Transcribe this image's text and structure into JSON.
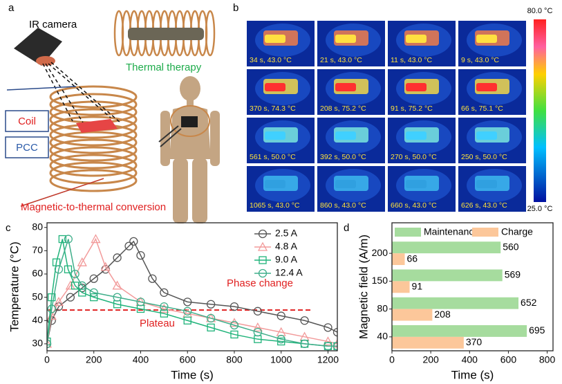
{
  "panel_a": {
    "label": "a",
    "camera": "IR camera",
    "therapy": "Thermal therapy",
    "coil": "Coil",
    "pcc": "PCC",
    "conversion": "Magnetic-to-thermal conversion"
  },
  "panel_b": {
    "label": "b",
    "images": [
      "34 s, 43.0 °C",
      "21 s, 43.0 °C",
      "11 s, 43.0 °C",
      "9 s, 43.0 °C",
      "370 s, 74.3 °C",
      "208 s, 75.2 °C",
      "91 s, 75.2 °C",
      "66 s, 75.1 °C",
      "561 s, 50.0 °C",
      "392 s, 50.0 °C",
      "270 s, 50.0 °C",
      "250 s, 50.0 °C",
      "1065 s, 43.0 °C",
      "860 s, 43.0 °C",
      "660 s, 43.0 °C",
      "626 s, 43.0 °C"
    ],
    "colorbar_max": "80.0 °C",
    "colorbar_min": "25.0 °C"
  },
  "chart_data": [
    {
      "type": "line",
      "panel": "c",
      "xlabel": "Time (s)",
      "ylabel": "Temperature (°C)",
      "xlim": [
        0,
        1240
      ],
      "ylim": [
        27,
        82
      ],
      "xticks": [
        0,
        200,
        400,
        600,
        800,
        1000,
        1200
      ],
      "yticks": [
        30,
        40,
        50,
        60,
        70,
        80
      ],
      "annotations": [
        "Phase change",
        "Plateau"
      ],
      "annotation_color": "#e02020",
      "reference_line": {
        "y": 44.5,
        "xmax": 1130,
        "color": "#e02020"
      },
      "legend": "upper right",
      "series": [
        {
          "name": "2.5 A",
          "color": "#555555",
          "marker": "circle",
          "x": [
            0,
            20,
            50,
            100,
            150,
            200,
            250,
            300,
            350,
            370,
            400,
            450,
            500,
            600,
            700,
            800,
            900,
            1000,
            1100,
            1200,
            1240
          ],
          "values": [
            30,
            40,
            46,
            50,
            54,
            58,
            62,
            67,
            72,
            74,
            68,
            58,
            52,
            48,
            47,
            46,
            44,
            42,
            40,
            37,
            35
          ]
        },
        {
          "name": "4.8 A",
          "color": "#f29a9a",
          "marker": "triangle",
          "x": [
            0,
            20,
            50,
            100,
            150,
            208,
            250,
            300,
            400,
            500,
            600,
            700,
            800,
            900,
            1000,
            1100,
            1200,
            1240
          ],
          "values": [
            30,
            42,
            48,
            55,
            65,
            75,
            63,
            55,
            48,
            45,
            43,
            41,
            39,
            37,
            35,
            33,
            31,
            30
          ]
        },
        {
          "name": "9.0 A",
          "color": "#1fb37a",
          "marker": "square",
          "x": [
            0,
            20,
            40,
            66,
            90,
            120,
            150,
            200,
            300,
            400,
            500,
            600,
            700,
            800,
            900,
            1000,
            1100,
            1200,
            1240
          ],
          "values": [
            31,
            50,
            65,
            75,
            62,
            55,
            52,
            50,
            47,
            45,
            43,
            40,
            37,
            34,
            32,
            31,
            30,
            29,
            29
          ]
        },
        {
          "name": "12.4 A",
          "color": "#3fae8a",
          "marker": "circle",
          "x": [
            0,
            20,
            50,
            91,
            120,
            150,
            200,
            300,
            400,
            500,
            600,
            700,
            800,
            900,
            1000,
            1100,
            1200,
            1240
          ],
          "values": [
            30,
            45,
            62,
            75,
            60,
            55,
            52,
            50,
            48,
            46,
            44,
            41,
            38,
            35,
            32,
            30,
            29,
            29
          ]
        }
      ]
    },
    {
      "type": "hbar",
      "panel": "d",
      "xlabel": "Time (s)",
      "ylabel": "Magnetic field (A/m)",
      "xlim": [
        0,
        830
      ],
      "xticks": [
        0,
        200,
        400,
        600,
        800
      ],
      "categories": [
        "200",
        "150",
        "80",
        "40"
      ],
      "legend": "top",
      "series": [
        {
          "name": "Maintenance",
          "color": "#a6dc9e",
          "values": [
            560,
            569,
            652,
            695
          ]
        },
        {
          "name": "Charge",
          "color": "#fcc79a",
          "values": [
            66,
            91,
            208,
            370
          ]
        }
      ]
    }
  ]
}
